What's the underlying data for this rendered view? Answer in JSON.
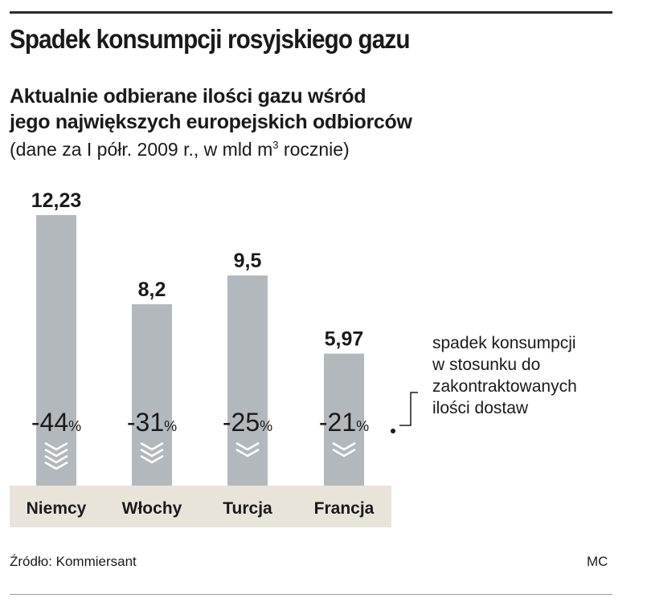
{
  "title": "Spadek konsumpcji rosyjskiego gazu",
  "subtitle_lines": [
    "Aktualnie odbierane ilości gazu wśród",
    "jego największych europejskich odbiorców"
  ],
  "note": {
    "prefix": "(dane za I półr. 2009 r., w mld m",
    "superscript": "3",
    "suffix": " rocznie)"
  },
  "chart_data": {
    "type": "bar",
    "categories": [
      "Niemcy",
      "Włochy",
      "Turcja",
      "Francja"
    ],
    "values": [
      12.23,
      8.2,
      9.5,
      5.97
    ],
    "value_labels": [
      "12,23",
      "8,2",
      "9,5",
      "5,97"
    ],
    "decline_pct": [
      -44,
      -31,
      -25,
      -21
    ],
    "decline_labels": [
      "-44",
      "-31",
      "-25",
      "-21"
    ],
    "percent_sign": "%",
    "ylim": [
      0,
      12.23
    ],
    "grid": false
  },
  "legend_lines": [
    "spadek konsumpcji",
    "w stosunku do",
    "zakontraktowanych",
    "ilości dostaw"
  ],
  "source": "Źródło: Kommiersant",
  "credit": "MC",
  "colors": {
    "bar": "#b3b8bd",
    "category_band": "#e8e4da",
    "text": "#1a1a1a",
    "chevron": "#ffffff"
  }
}
